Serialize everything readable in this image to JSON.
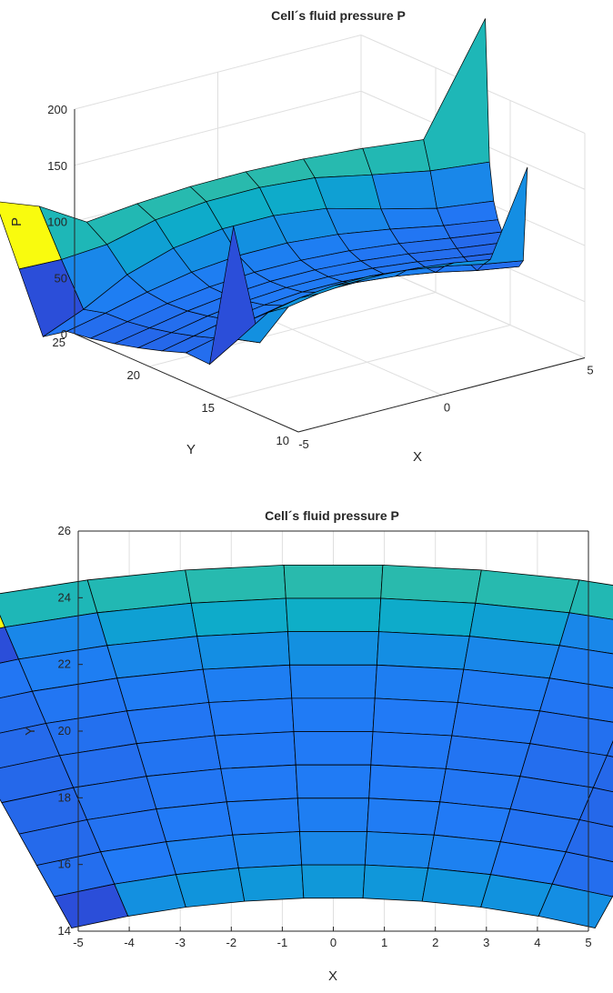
{
  "figure": {
    "title": "Cell´s fluid pressure P",
    "background": "#ffffff",
    "axis_color": "#262626",
    "grid_color": "#dfdfdf"
  },
  "chart_data": [
    {
      "type": "surface3d",
      "title": "Cell´s fluid pressure P",
      "xlabel": "X",
      "ylabel": "Y",
      "zlabel": "P",
      "xlim": [
        -5,
        5
      ],
      "ylim": [
        10,
        25
      ],
      "zlim": [
        0,
        200
      ],
      "x_ticks": [
        -5,
        0,
        5
      ],
      "y_ticks": [
        10,
        15,
        20,
        25
      ],
      "z_ticks": [
        0,
        50,
        100,
        150,
        200
      ],
      "x_tick_labels": [
        "-5",
        "0",
        "5"
      ],
      "y_tick_labels": [
        "10",
        "15",
        "20",
        "25"
      ],
      "z_tick_labels": [
        "0",
        "50",
        "100",
        "150",
        "200"
      ],
      "grid": true,
      "colormap": "parula",
      "mesh": {
        "radial_cells": 10,
        "angular_cells": 9,
        "angle_span_deg": 40,
        "inner_radius": 15,
        "outer_radius": 25
      },
      "spikes": [
        {
          "corner": "outer-left",
          "x": -4.3,
          "y": 24.6,
          "P": 150
        },
        {
          "corner": "outer-right",
          "x": 4.3,
          "y": 24.6,
          "P": 200
        },
        {
          "corner": "inner-left",
          "x": -2.6,
          "y": 14.8,
          "P": 160
        },
        {
          "corner": "inner-right",
          "x": 2.6,
          "y": 14.8,
          "P": 145
        }
      ],
      "pressure_range": [
        0,
        160
      ]
    },
    {
      "type": "heatmap",
      "title": "Cell´s fluid pressure P",
      "xlabel": "X",
      "ylabel": "Y",
      "xlim": [
        -5,
        5
      ],
      "ylim": [
        14,
        26
      ],
      "x_ticks": [
        -5,
        -4,
        -3,
        -2,
        -1,
        0,
        1,
        2,
        3,
        4,
        5
      ],
      "y_ticks": [
        14,
        16,
        18,
        20,
        22,
        24,
        26
      ],
      "x_tick_labels": [
        "-5",
        "-4",
        "-3",
        "-2",
        "-1",
        "0",
        "1",
        "2",
        "3",
        "4",
        "5"
      ],
      "y_tick_labels": [
        "14",
        "16",
        "18",
        "20",
        "22",
        "24",
        "26"
      ],
      "grid": true,
      "colormap": "parula",
      "mesh": {
        "inner_radius": 15,
        "outer_radius": 25,
        "angle_span_deg": 40,
        "radial_cells": 10,
        "angular_cells": 9
      },
      "pressure_range": [
        0,
        160
      ],
      "cell_values": [
        [
          160,
          100,
          102,
          104,
          105,
          105,
          104,
          102,
          100
        ],
        [
          26,
          60,
          80,
          88,
          90,
          88,
          80,
          60,
          60
        ],
        [
          46,
          52,
          60,
          66,
          68,
          66,
          60,
          52,
          46
        ],
        [
          42,
          46,
          50,
          52,
          53,
          52,
          50,
          46,
          42
        ],
        [
          40,
          43,
          46,
          48,
          49,
          48,
          46,
          43,
          40
        ],
        [
          39,
          42,
          45,
          47,
          48,
          47,
          45,
          42,
          39
        ],
        [
          39,
          43,
          46,
          48,
          49,
          48,
          46,
          43,
          39
        ],
        [
          40,
          44,
          48,
          50,
          52,
          50,
          48,
          44,
          40
        ],
        [
          42,
          48,
          54,
          58,
          60,
          58,
          54,
          48,
          42
        ],
        [
          26,
          68,
          72,
          74,
          75,
          74,
          72,
          70,
          66
        ]
      ]
    }
  ]
}
